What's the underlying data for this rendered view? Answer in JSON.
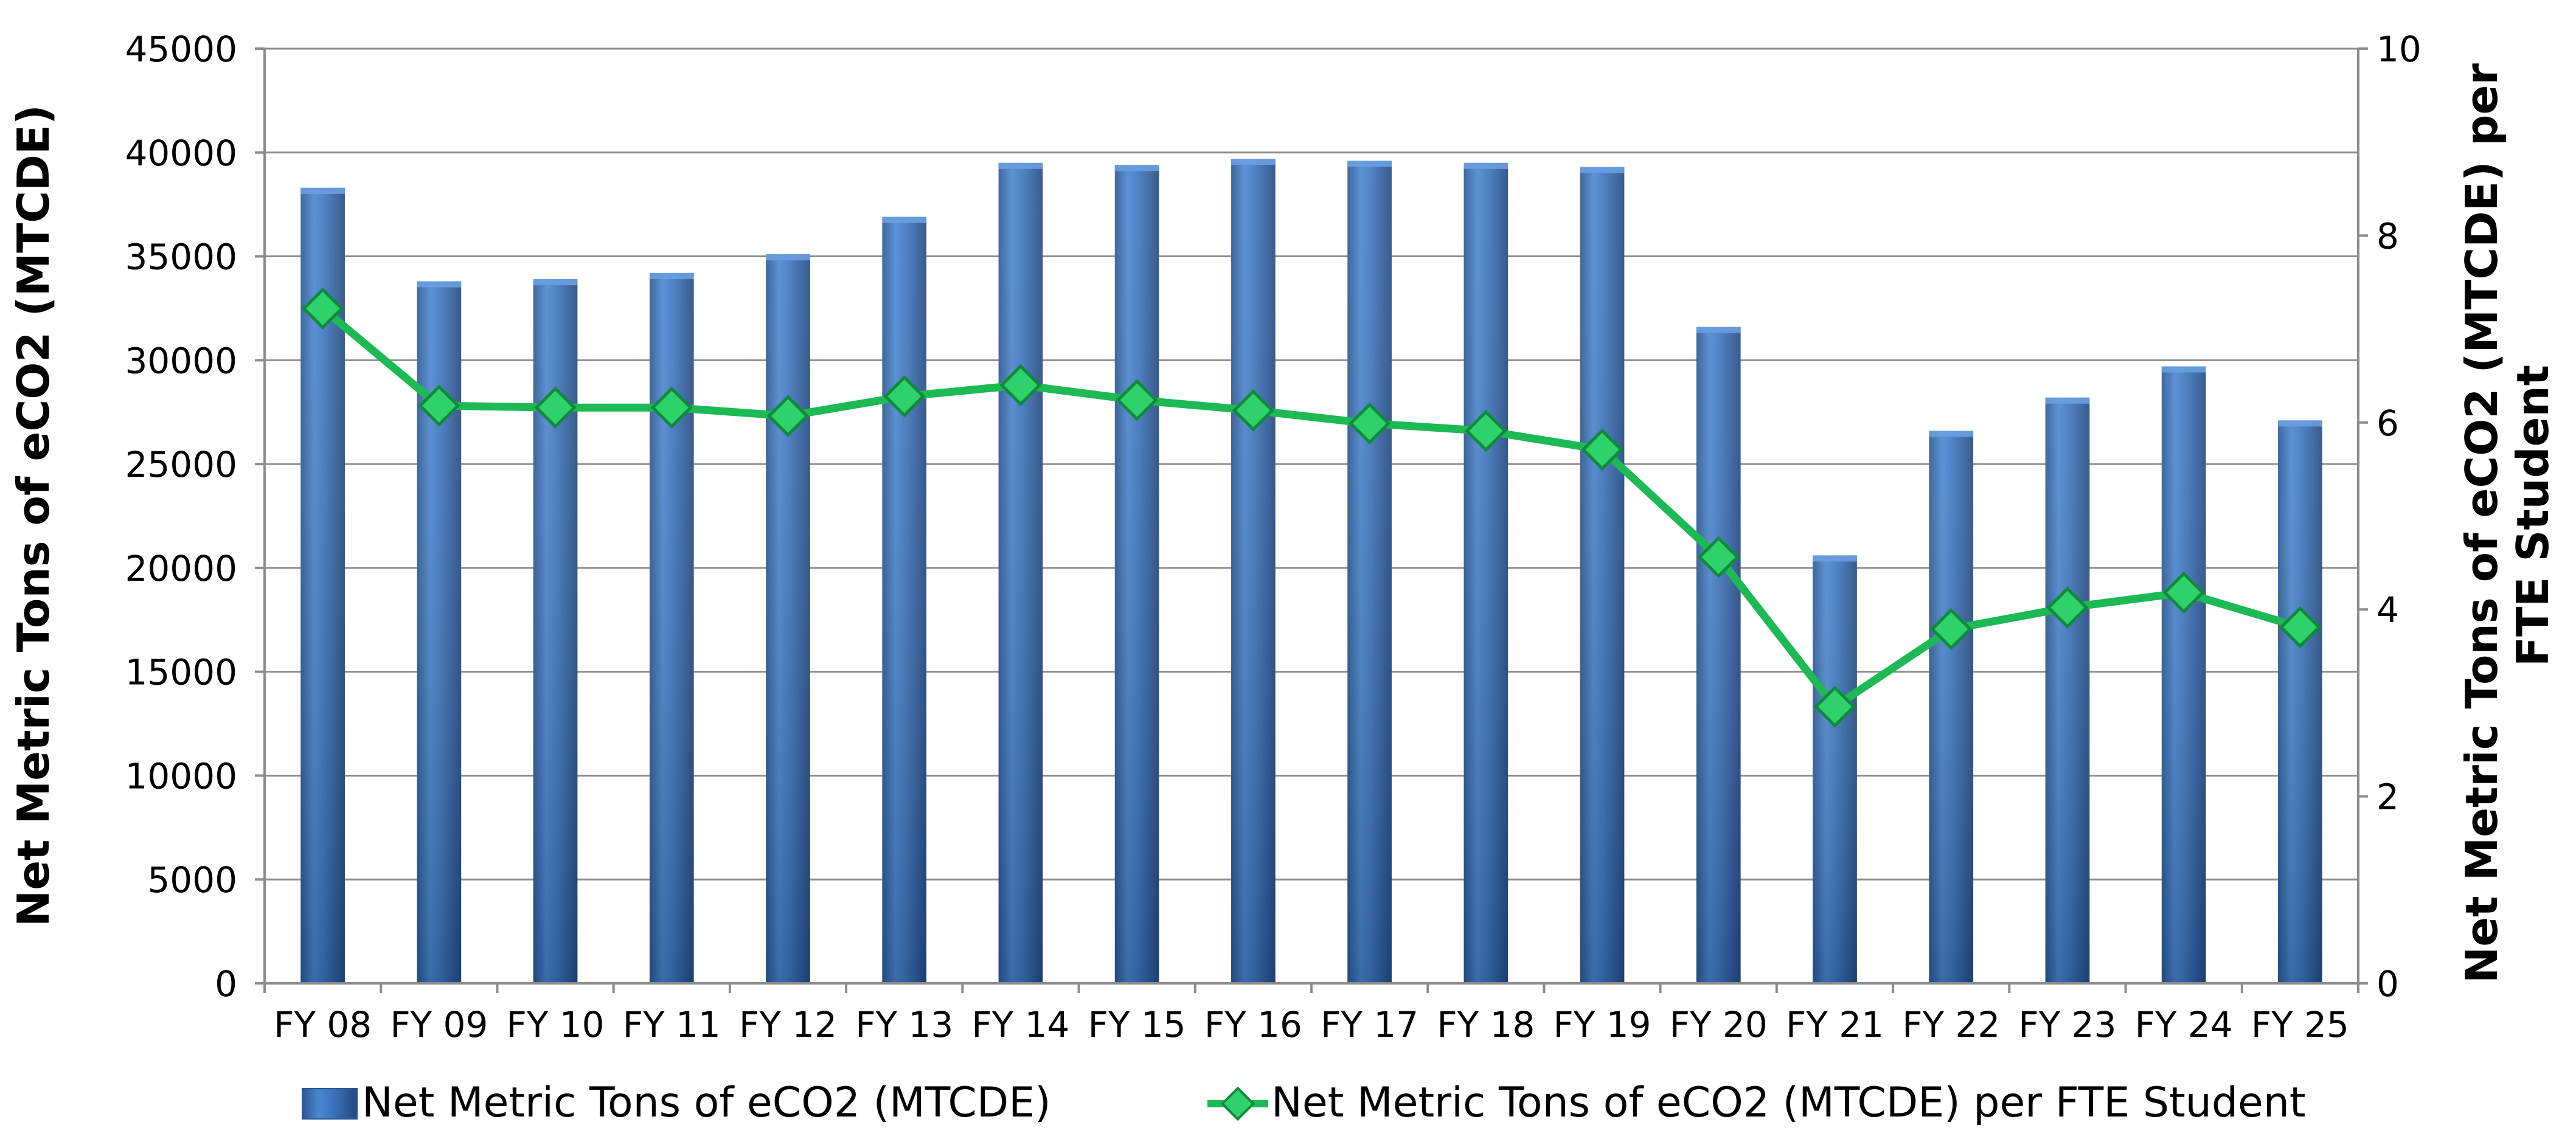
{
  "chart_data": {
    "type": "bar",
    "categories": [
      "FY 08",
      "FY 09",
      "FY 10",
      "FY 11",
      "FY 12",
      "FY 13",
      "FY 14",
      "FY 15",
      "FY 16",
      "FY 17",
      "FY 18",
      "FY 19",
      "FY 20",
      "FY 21",
      "FY 22",
      "FY 23",
      "FY 24",
      "FY 25"
    ],
    "series": [
      {
        "name": "Net Metric Tons of eCO2 (MTCDE)",
        "type": "bar",
        "axis": "left",
        "color": "#3b74bd",
        "values": [
          38300,
          33800,
          33900,
          34200,
          35100,
          36900,
          39500,
          39400,
          39700,
          39600,
          39500,
          39300,
          31600,
          20600,
          26600,
          28200,
          29700,
          27100
        ]
      },
      {
        "name": "Net Metric Tons of eCO2 (MTCDE) per FTE Student",
        "type": "line",
        "axis": "right",
        "color": "#1db954",
        "values": [
          7.22,
          6.18,
          6.16,
          6.16,
          6.07,
          6.28,
          6.4,
          6.24,
          6.13,
          5.99,
          5.91,
          5.71,
          4.56,
          2.96,
          3.79,
          4.02,
          4.18,
          3.81
        ]
      }
    ],
    "y_left": {
      "label": "Net Metric Tons of eCO2 (MTCDE)",
      "ylim": [
        0,
        45000
      ],
      "ticks": [
        "0",
        "5000",
        "10000",
        "15000",
        "20000",
        "25000",
        "30000",
        "35000",
        "40000",
        "45000"
      ]
    },
    "y_right": {
      "label_lines": [
        "Net Metric Tons of eCO2 (MTCDE) per",
        "FTE Student"
      ],
      "ylim": [
        0,
        10
      ],
      "ticks": [
        "0",
        "2",
        "4",
        "6",
        "8",
        "10"
      ]
    },
    "grid": true,
    "legend_position": "bottom",
    "title": ""
  }
}
